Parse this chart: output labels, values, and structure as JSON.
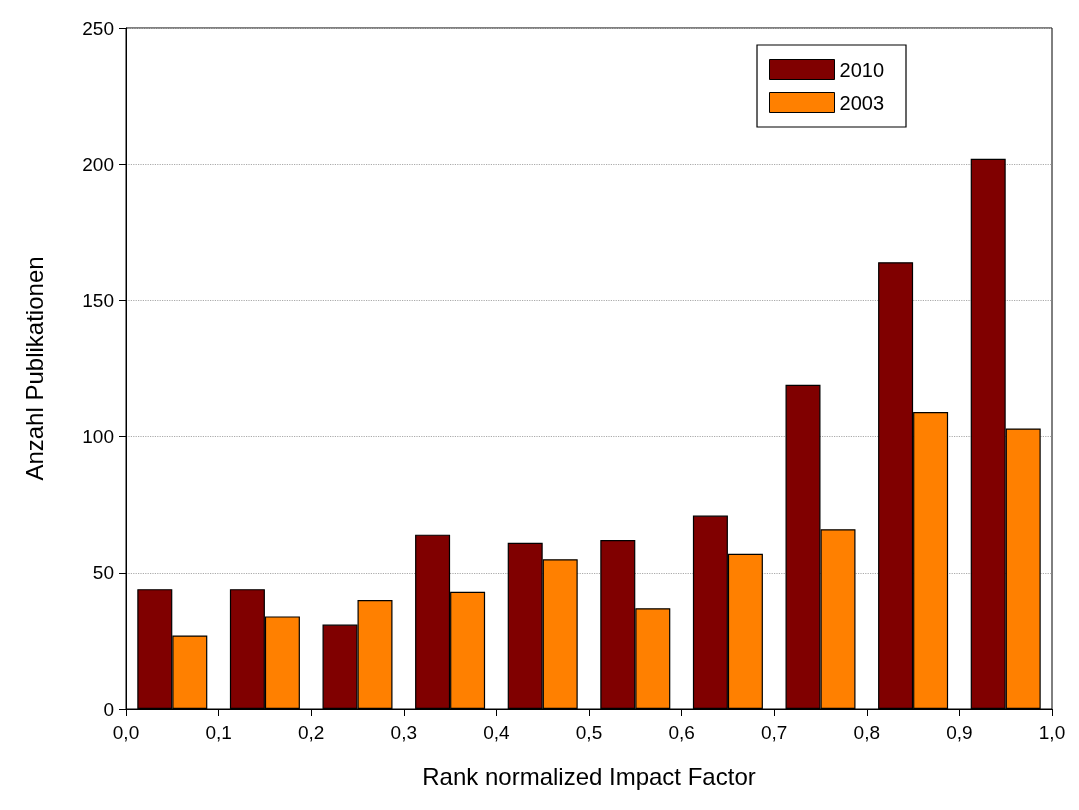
{
  "chart_data": {
    "type": "bar",
    "xlabel": "Rank normalized Impact Factor",
    "ylabel": "Anzahl Publikationen",
    "x": [
      0.05,
      0.15,
      0.25,
      0.35,
      0.45,
      0.55,
      0.65,
      0.75,
      0.85,
      0.95
    ],
    "series": [
      {
        "name": "2010",
        "color": "#800000",
        "values": [
          44,
          44,
          31,
          64,
          61,
          62,
          71,
          119,
          164,
          202
        ]
      },
      {
        "name": "2003",
        "color": "#ff8000",
        "values": [
          27,
          34,
          40,
          43,
          55,
          37,
          57,
          66,
          109,
          103
        ]
      }
    ],
    "xlim": [
      0,
      1
    ],
    "xticks": [
      {
        "value": 0,
        "label": "0,0"
      },
      {
        "value": 0.1,
        "label": "0,1"
      },
      {
        "value": 0.2,
        "label": "0,2"
      },
      {
        "value": 0.3,
        "label": "0,3"
      },
      {
        "value": 0.4,
        "label": "0,4"
      },
      {
        "value": 0.5,
        "label": "0,5"
      },
      {
        "value": 0.6,
        "label": "0,6"
      },
      {
        "value": 0.7,
        "label": "0,7"
      },
      {
        "value": 0.8,
        "label": "0,8"
      },
      {
        "value": 0.9,
        "label": "0,9"
      },
      {
        "value": 1,
        "label": "1,0"
      }
    ],
    "ylim": [
      0,
      250
    ],
    "yticks": [
      0,
      50,
      100,
      150,
      200,
      250
    ],
    "grid": "y",
    "legend": "top right"
  }
}
